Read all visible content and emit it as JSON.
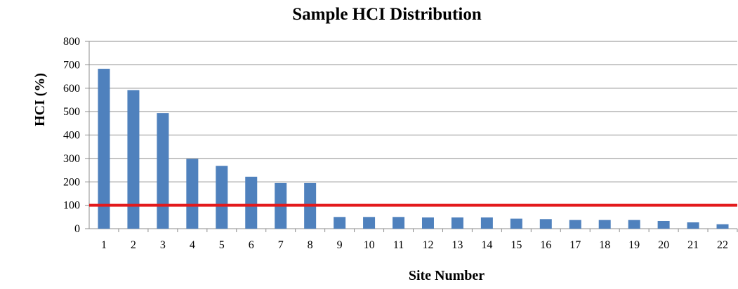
{
  "chart_data": {
    "type": "bar",
    "title": "Sample HCI Distribution",
    "xlabel": "Site Number",
    "ylabel": "HCI (%)",
    "categories": [
      "1",
      "2",
      "3",
      "4",
      "5",
      "6",
      "7",
      "8",
      "9",
      "10",
      "11",
      "12",
      "13",
      "14",
      "15",
      "16",
      "17",
      "18",
      "19",
      "20",
      "21",
      "22"
    ],
    "values": [
      683,
      592,
      494,
      298,
      268,
      222,
      195,
      195,
      50,
      50,
      50,
      48,
      48,
      48,
      43,
      41,
      37,
      37,
      37,
      33,
      27,
      19
    ],
    "ylim": [
      0,
      800
    ],
    "yticks": [
      "0",
      "100",
      "200",
      "300",
      "400",
      "500",
      "600",
      "700",
      "800"
    ],
    "grid": true,
    "legend": "none",
    "reference_line": {
      "value": 100,
      "color": "#e31a1c"
    },
    "colors": {
      "bar": "#4f81bd",
      "grid": "#8c8c8c",
      "reference": "#e31a1c"
    }
  }
}
